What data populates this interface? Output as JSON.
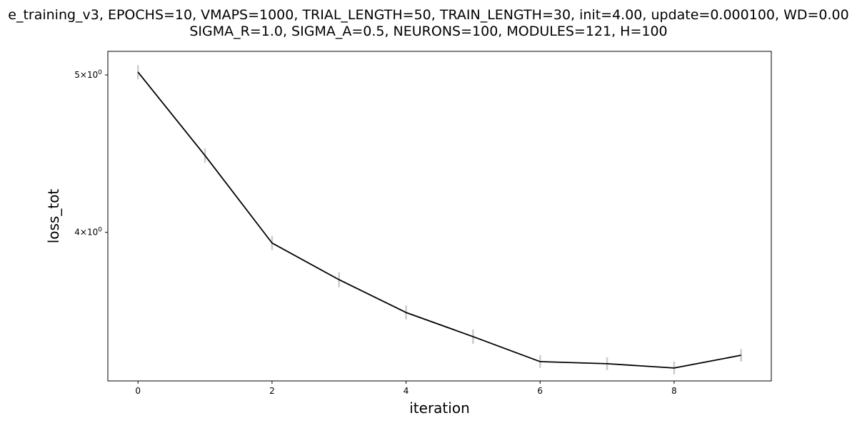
{
  "chart_data": {
    "type": "line",
    "title_lines": [
      "e_training_v3, EPOCHS=10, VMAPS=1000, TRIAL_LENGTH=50, TRAIN_LENGTH=30, init=4.00, update=0.000100, WD=0.00",
      "SIGMA_R=1.0, SIGMA_A=0.5, NEURONS=100, MODULES=121, H=100"
    ],
    "xlabel": "iteration",
    "ylabel": "loss_tot",
    "yscale": "log",
    "xlim": [
      -0.45,
      9.45
    ],
    "ylim": [
      3.24,
      5.17
    ],
    "x_ticks": [
      0,
      2,
      4,
      6,
      8
    ],
    "y_ticks": [
      {
        "value": 5.0,
        "base": "5",
        "exp": "0"
      },
      {
        "value": 4.0,
        "base": "4",
        "exp": "0"
      }
    ],
    "grid": false,
    "series": [
      {
        "color": "#000000",
        "x": [
          0,
          1,
          2,
          3,
          4,
          5,
          6,
          7,
          8,
          9
        ],
        "y": [
          5.02,
          4.46,
          3.94,
          3.74,
          3.57,
          3.45,
          3.33,
          3.32,
          3.3,
          3.36
        ],
        "err": [
          0.05,
          0.045,
          0.04,
          0.04,
          0.035,
          0.035,
          0.03,
          0.03,
          0.03,
          0.03
        ]
      }
    ],
    "errorbar_color": "#cccccc"
  }
}
